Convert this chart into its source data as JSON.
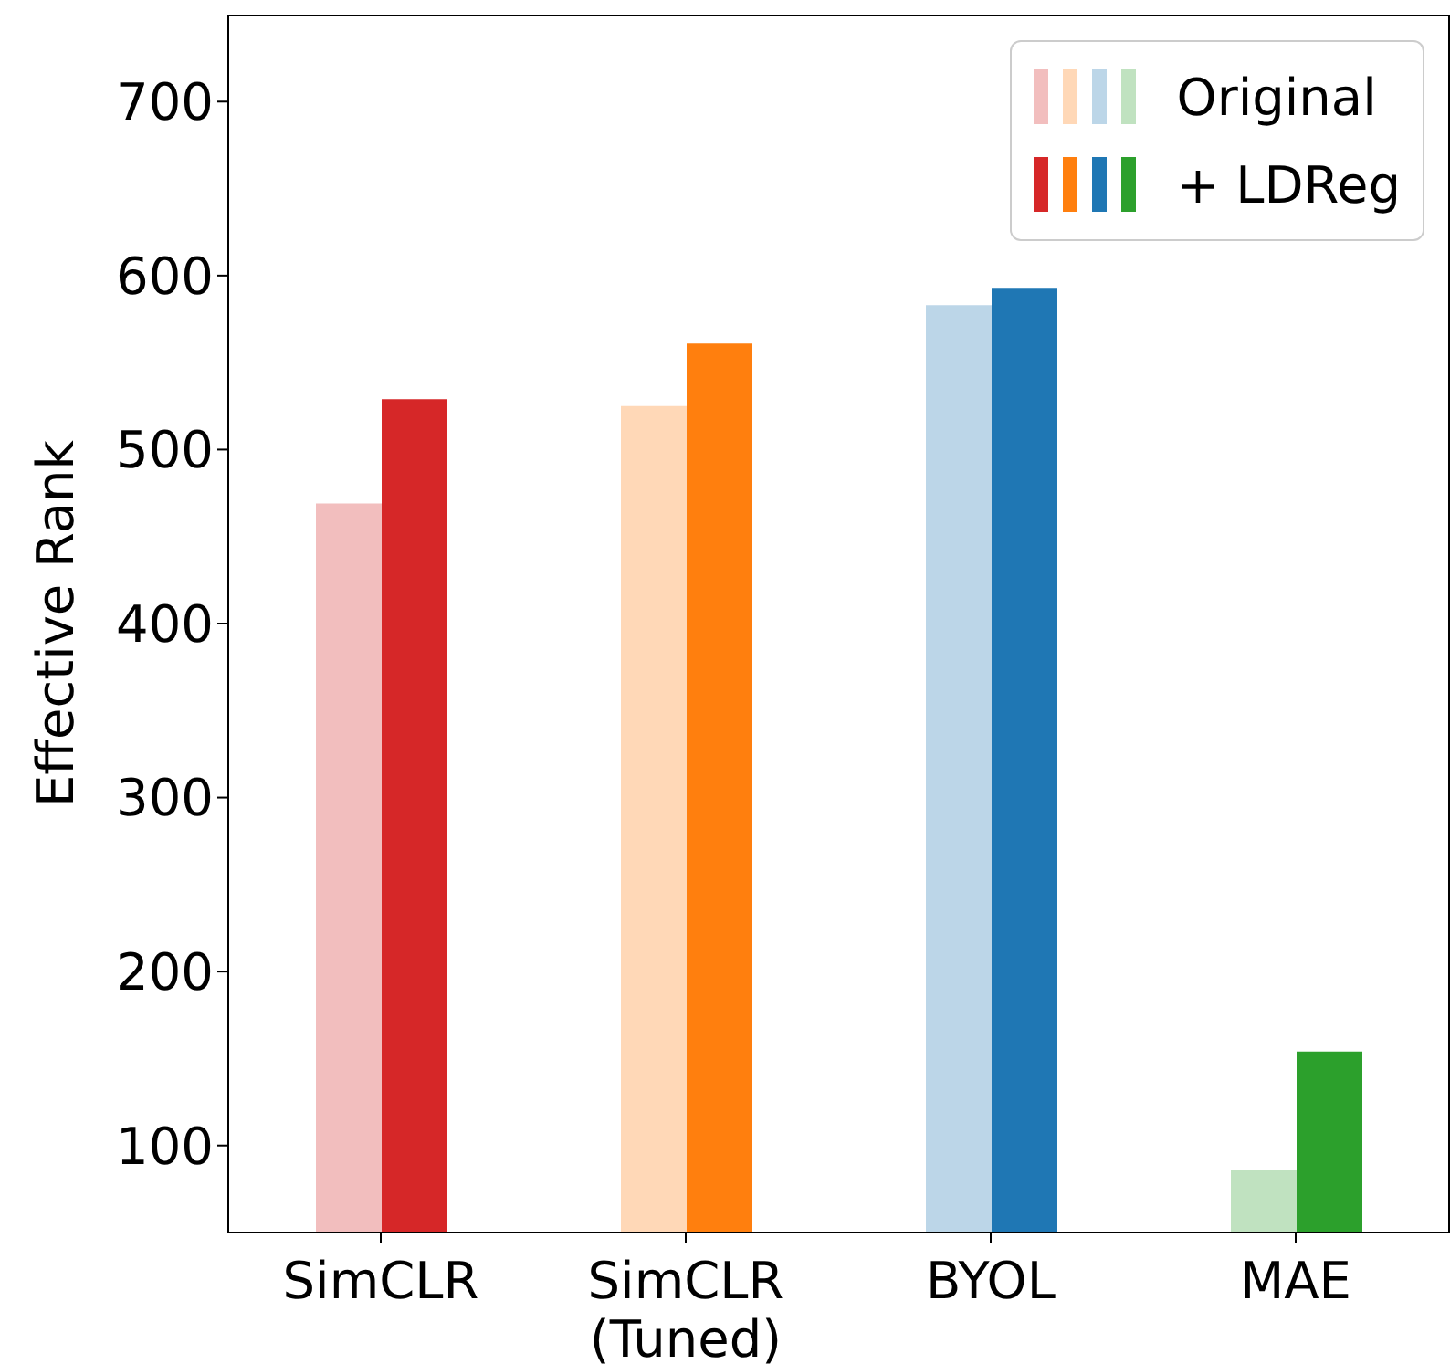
{
  "chart_data": {
    "type": "bar",
    "ylabel": "Effective Rank",
    "categories": [
      "SimCLR",
      "SimCLR\n(Tuned)",
      "BYOL",
      "MAE"
    ],
    "series": [
      {
        "name": "Original",
        "colors": [
          "#f2bebe",
          "#ffd8b7",
          "#bcd6e8",
          "#c0e2c0"
        ],
        "values": [
          469,
          525,
          583,
          86
        ]
      },
      {
        "name": "+ LDReg",
        "colors": [
          "#d62728",
          "#ff7f0e",
          "#1f77b4",
          "#2ca02c"
        ],
        "values": [
          529,
          561,
          593,
          154
        ]
      }
    ],
    "ylim": [
      50,
      750
    ],
    "yticks": [
      100,
      200,
      300,
      400,
      500,
      600,
      700
    ],
    "legend": "top right"
  }
}
